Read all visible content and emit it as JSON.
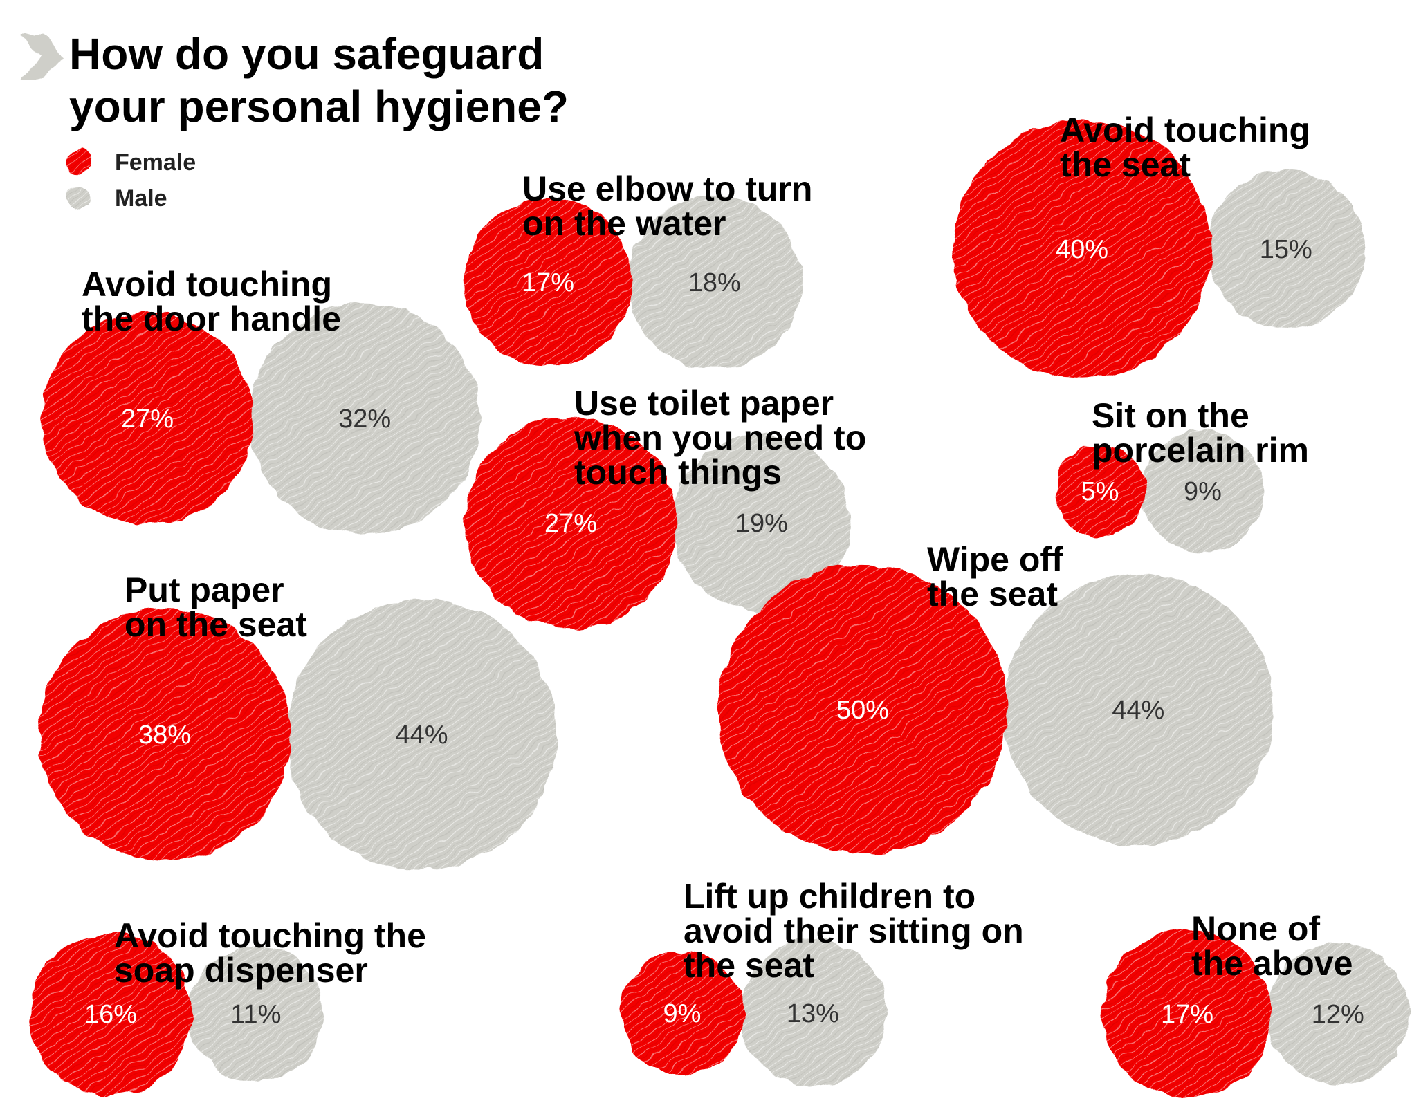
{
  "colors": {
    "female": "#f20000",
    "male": "#cfcfc9",
    "text": "#000000",
    "arrow": "#cfcfc9"
  },
  "icons": {
    "title_marker": "chevron-right-icon"
  },
  "chart_data": {
    "type": "bubble",
    "title": "How do you safeguard your personal hygiene?",
    "title_lines": [
      "How do you safeguard",
      "your personal hygiene?"
    ],
    "unit": "%",
    "legend": [
      {
        "key": "female",
        "label": "Female"
      },
      {
        "key": "male",
        "label": "Male"
      }
    ],
    "categories": [
      {
        "label_lines": [
          "Use elbow to turn",
          "on the water"
        ],
        "female": 17,
        "male": 18
      },
      {
        "label_lines": [
          "Avoid touching",
          "the seat"
        ],
        "female": 40,
        "male": 15
      },
      {
        "label_lines": [
          "Avoid touching",
          "the door handle"
        ],
        "female": 27,
        "male": 32
      },
      {
        "label_lines": [
          "Use toilet paper",
          "when you need to",
          "touch things"
        ],
        "female": 27,
        "male": 19
      },
      {
        "label_lines": [
          "Sit on the",
          "porcelain rim"
        ],
        "female": 5,
        "male": 9
      },
      {
        "label_lines": [
          "Wipe off",
          "the seat"
        ],
        "female": 50,
        "male": 44
      },
      {
        "label_lines": [
          "Put paper",
          "on the seat"
        ],
        "female": 38,
        "male": 44
      },
      {
        "label_lines": [
          "Avoid touching the",
          "soap dispenser"
        ],
        "female": 16,
        "male": 11
      },
      {
        "label_lines": [
          "Lift up children to",
          "avoid their sitting on",
          "the seat"
        ],
        "female": 9,
        "male": 13
      },
      {
        "label_lines": [
          "None of",
          "the above"
        ],
        "female": 17,
        "male": 12
      }
    ]
  }
}
